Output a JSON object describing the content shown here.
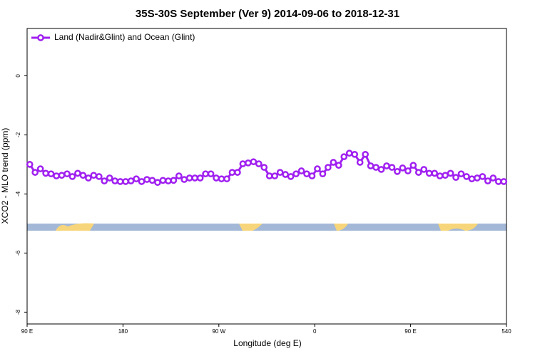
{
  "chart_data": {
    "type": "line",
    "title": "35S-30S September (Ver 9)   2014-09-06 to 2018-12-31",
    "xlabel": "Longitude (deg E)",
    "ylabel": "XCO2 - MLO trend (ppm)",
    "xlim": [
      90,
      540
    ],
    "ylim": [
      -8.4,
      1.6
    ],
    "xticks": [
      {
        "value": 90,
        "label": "90 E"
      },
      180,
      {
        "value": 270,
        "label": "90 W"
      },
      {
        "value": 360,
        "label": "0"
      },
      {
        "value": 450,
        "label": "90 E"
      },
      540
    ],
    "yticks": [
      0,
      -2,
      -4,
      -6,
      -8
    ],
    "legend": "topleft",
    "series": [
      {
        "name": "Land (Nadir&Glint) and Ocean (Glint)",
        "color": "#a020f0",
        "x": [
          92.5,
          97.5,
          102.5,
          107.5,
          112.5,
          117.5,
          122.5,
          127.5,
          132.5,
          137.5,
          142.5,
          147.5,
          152.5,
          157.5,
          162.5,
          167.5,
          172.5,
          177.5,
          182.5,
          187.5,
          192.5,
          197.5,
          202.5,
          207.5,
          212.5,
          217.5,
          222.5,
          227.5,
          232.5,
          237.5,
          242.5,
          247.5,
          252.5,
          257.5,
          262.5,
          267.5,
          272.5,
          277.5,
          282.5,
          287.5,
          292.5,
          297.5,
          302.5,
          307.5,
          312.5,
          317.5,
          322.5,
          327.5,
          332.5,
          337.5,
          342.5,
          347.5,
          352.5,
          357.5,
          362.5,
          367.5,
          372.5,
          377.5,
          382.5,
          387.5,
          392.5,
          397.5,
          402.5,
          407.5,
          412.5,
          417.5,
          422.5,
          427.5,
          432.5,
          437.5,
          442.5,
          447.5,
          452.5,
          457.5,
          462.5,
          467.5,
          472.5,
          477.5,
          482.5,
          487.5,
          492.5,
          497.5,
          502.5,
          507.5,
          512.5,
          517.5,
          522.5,
          527.5,
          532.5,
          537.5
        ],
        "values": [
          -3.0,
          -3.27,
          -3.15,
          -3.3,
          -3.32,
          -3.39,
          -3.37,
          -3.32,
          -3.41,
          -3.3,
          -3.37,
          -3.46,
          -3.37,
          -3.41,
          -3.56,
          -3.46,
          -3.56,
          -3.58,
          -3.58,
          -3.56,
          -3.49,
          -3.58,
          -3.51,
          -3.54,
          -3.61,
          -3.54,
          -3.56,
          -3.54,
          -3.39,
          -3.51,
          -3.46,
          -3.46,
          -3.46,
          -3.32,
          -3.32,
          -3.46,
          -3.49,
          -3.49,
          -3.27,
          -3.27,
          -2.98,
          -2.95,
          -2.91,
          -2.98,
          -3.1,
          -3.39,
          -3.39,
          -3.27,
          -3.34,
          -3.41,
          -3.32,
          -3.22,
          -3.32,
          -3.39,
          -3.15,
          -3.32,
          -3.1,
          -2.93,
          -3.03,
          -2.74,
          -2.62,
          -2.66,
          -2.93,
          -2.66,
          -3.05,
          -3.1,
          -3.17,
          -3.05,
          -3.1,
          -3.24,
          -3.12,
          -3.22,
          -3.03,
          -3.27,
          -3.17,
          -3.3,
          -3.3,
          -3.39,
          -3.37,
          -3.3,
          -3.44,
          -3.32,
          -3.41,
          -3.49,
          -3.46,
          -3.41,
          -3.56,
          -3.46,
          -3.58,
          -3.58
        ]
      }
    ]
  }
}
